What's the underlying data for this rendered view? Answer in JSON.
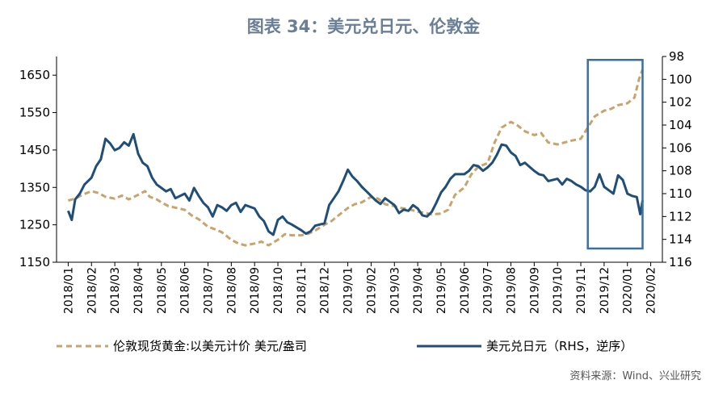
{
  "chart_data": {
    "type": "line",
    "title": "图表 34：美元兑日元、伦敦金",
    "source": "资料来源：Wind、兴业研究",
    "x_categories": [
      "2018/01",
      "2018/02",
      "2018/03",
      "2018/04",
      "2018/05",
      "2018/06",
      "2018/07",
      "2018/08",
      "2018/09",
      "2018/10",
      "2018/11",
      "2018/12",
      "2019/01",
      "2019/02",
      "2019/03",
      "2019/04",
      "2019/05",
      "2019/06",
      "2019/07",
      "2019/08",
      "2019/09",
      "2019/10",
      "2019/11",
      "2019/12",
      "2020/01",
      "2020/02"
    ],
    "y_left": {
      "min": 1150,
      "max": 1700,
      "ticks": [
        1150,
        1250,
        1350,
        1450,
        1550,
        1650
      ]
    },
    "y_right": {
      "min": 98,
      "max": 116,
      "inverted": true,
      "ticks": [
        98,
        100,
        102,
        104,
        106,
        108,
        110,
        112,
        114,
        116
      ]
    },
    "highlight_box": {
      "x_from": 22.3,
      "x_to": 24.65,
      "right_from": 98.3,
      "right_to": 114.8
    },
    "series": [
      {
        "name": "伦敦现货黄金:以美元计价 美元/盎司",
        "axis": "left",
        "color": "#c8a46a",
        "style": "dashed",
        "points": [
          [
            0,
            1315
          ],
          [
            0.3,
            1320
          ],
          [
            0.6,
            1330
          ],
          [
            1.0,
            1340
          ],
          [
            1.3,
            1335
          ],
          [
            1.6,
            1325
          ],
          [
            2.0,
            1320
          ],
          [
            2.3,
            1328
          ],
          [
            2.6,
            1318
          ],
          [
            3.0,
            1330
          ],
          [
            3.3,
            1340
          ],
          [
            3.5,
            1325
          ],
          [
            3.8,
            1318
          ],
          [
            4.0,
            1310
          ],
          [
            4.3,
            1300
          ],
          [
            4.6,
            1296
          ],
          [
            5.0,
            1290
          ],
          [
            5.3,
            1275
          ],
          [
            5.6,
            1265
          ],
          [
            6.0,
            1245
          ],
          [
            6.3,
            1238
          ],
          [
            6.6,
            1230
          ],
          [
            7.0,
            1210
          ],
          [
            7.3,
            1200
          ],
          [
            7.6,
            1195
          ],
          [
            8.0,
            1200
          ],
          [
            8.3,
            1205
          ],
          [
            8.6,
            1195
          ],
          [
            9.0,
            1210
          ],
          [
            9.3,
            1225
          ],
          [
            9.6,
            1222
          ],
          [
            10.0,
            1222
          ],
          [
            10.3,
            1226
          ],
          [
            10.6,
            1235
          ],
          [
            11.0,
            1250
          ],
          [
            11.3,
            1260
          ],
          [
            11.6,
            1275
          ],
          [
            12.0,
            1295
          ],
          [
            12.3,
            1305
          ],
          [
            12.6,
            1310
          ],
          [
            13.0,
            1325
          ],
          [
            13.3,
            1320
          ],
          [
            13.6,
            1305
          ],
          [
            14.0,
            1300
          ],
          [
            14.3,
            1295
          ],
          [
            14.6,
            1292
          ],
          [
            15.0,
            1285
          ],
          [
            15.3,
            1282
          ],
          [
            15.6,
            1278
          ],
          [
            16.0,
            1280
          ],
          [
            16.3,
            1290
          ],
          [
            16.6,
            1330
          ],
          [
            17.0,
            1350
          ],
          [
            17.3,
            1385
          ],
          [
            17.6,
            1405
          ],
          [
            18.0,
            1415
          ],
          [
            18.3,
            1470
          ],
          [
            18.6,
            1510
          ],
          [
            19.0,
            1525
          ],
          [
            19.3,
            1515
          ],
          [
            19.6,
            1500
          ],
          [
            20.0,
            1490
          ],
          [
            20.3,
            1495
          ],
          [
            20.6,
            1470
          ],
          [
            21.0,
            1465
          ],
          [
            21.3,
            1470
          ],
          [
            21.6,
            1475
          ],
          [
            22.0,
            1480
          ],
          [
            22.3,
            1510
          ],
          [
            22.6,
            1540
          ],
          [
            23.0,
            1555
          ],
          [
            23.3,
            1560
          ],
          [
            23.6,
            1570
          ],
          [
            24.0,
            1575
          ],
          [
            24.3,
            1590
          ],
          [
            24.5,
            1640
          ],
          [
            24.65,
            1665
          ]
        ]
      },
      {
        "name": "美元兑日元（RHS，逆序）",
        "axis": "right",
        "color": "#1f4e79",
        "style": "solid",
        "points": [
          [
            0,
            111.5
          ],
          [
            0.15,
            112.3
          ],
          [
            0.3,
            110.5
          ],
          [
            0.5,
            110.0
          ],
          [
            0.7,
            109.2
          ],
          [
            1.0,
            108.6
          ],
          [
            1.2,
            107.6
          ],
          [
            1.4,
            107.0
          ],
          [
            1.6,
            105.2
          ],
          [
            1.8,
            105.6
          ],
          [
            2.0,
            106.2
          ],
          [
            2.2,
            106.0
          ],
          [
            2.4,
            105.5
          ],
          [
            2.6,
            105.8
          ],
          [
            2.8,
            104.8
          ],
          [
            3.0,
            106.5
          ],
          [
            3.2,
            107.3
          ],
          [
            3.4,
            107.6
          ],
          [
            3.6,
            108.6
          ],
          [
            3.8,
            109.2
          ],
          [
            4.0,
            109.5
          ],
          [
            4.2,
            109.8
          ],
          [
            4.4,
            109.6
          ],
          [
            4.6,
            110.4
          ],
          [
            5.0,
            110.0
          ],
          [
            5.2,
            110.6
          ],
          [
            5.4,
            109.5
          ],
          [
            5.6,
            110.2
          ],
          [
            5.8,
            110.8
          ],
          [
            6.0,
            111.2
          ],
          [
            6.2,
            112.0
          ],
          [
            6.4,
            111.0
          ],
          [
            6.6,
            111.2
          ],
          [
            6.8,
            111.5
          ],
          [
            7.0,
            111.0
          ],
          [
            7.2,
            110.8
          ],
          [
            7.4,
            111.6
          ],
          [
            7.6,
            111.0
          ],
          [
            8.0,
            111.3
          ],
          [
            8.2,
            112.0
          ],
          [
            8.4,
            112.4
          ],
          [
            8.6,
            113.3
          ],
          [
            8.8,
            113.6
          ],
          [
            9.0,
            112.3
          ],
          [
            9.2,
            112.0
          ],
          [
            9.4,
            112.5
          ],
          [
            9.6,
            112.7
          ],
          [
            10.0,
            113.2
          ],
          [
            10.2,
            113.5
          ],
          [
            10.4,
            113.3
          ],
          [
            10.6,
            112.8
          ],
          [
            11.0,
            112.6
          ],
          [
            11.2,
            111.0
          ],
          [
            11.4,
            110.4
          ],
          [
            11.6,
            109.8
          ],
          [
            11.8,
            108.9
          ],
          [
            12.0,
            107.9
          ],
          [
            12.2,
            108.5
          ],
          [
            12.4,
            108.9
          ],
          [
            12.6,
            109.4
          ],
          [
            12.8,
            109.8
          ],
          [
            13.0,
            110.2
          ],
          [
            13.2,
            110.6
          ],
          [
            13.4,
            110.9
          ],
          [
            13.6,
            110.4
          ],
          [
            14.0,
            111.0
          ],
          [
            14.2,
            111.7
          ],
          [
            14.4,
            111.4
          ],
          [
            14.6,
            111.5
          ],
          [
            14.8,
            111.0
          ],
          [
            15.0,
            111.3
          ],
          [
            15.2,
            111.9
          ],
          [
            15.4,
            112.0
          ],
          [
            15.6,
            111.6
          ],
          [
            15.8,
            110.8
          ],
          [
            16.0,
            109.9
          ],
          [
            16.2,
            109.4
          ],
          [
            16.4,
            108.7
          ],
          [
            16.6,
            108.3
          ],
          [
            17.0,
            108.3
          ],
          [
            17.2,
            108.0
          ],
          [
            17.4,
            107.5
          ],
          [
            17.6,
            107.6
          ],
          [
            17.8,
            108.0
          ],
          [
            18.0,
            107.7
          ],
          [
            18.2,
            107.3
          ],
          [
            18.4,
            106.6
          ],
          [
            18.6,
            105.7
          ],
          [
            18.8,
            105.8
          ],
          [
            19.0,
            106.4
          ],
          [
            19.2,
            106.7
          ],
          [
            19.4,
            107.5
          ],
          [
            19.6,
            107.3
          ],
          [
            20.0,
            108.0
          ],
          [
            20.2,
            108.3
          ],
          [
            20.4,
            108.4
          ],
          [
            20.6,
            108.9
          ],
          [
            21.0,
            108.7
          ],
          [
            21.2,
            109.2
          ],
          [
            21.4,
            108.7
          ],
          [
            21.6,
            108.9
          ],
          [
            21.8,
            109.2
          ],
          [
            22.0,
            109.4
          ],
          [
            22.2,
            109.7
          ],
          [
            22.4,
            109.8
          ],
          [
            22.6,
            109.4
          ],
          [
            22.8,
            108.3
          ],
          [
            23.0,
            109.4
          ],
          [
            23.2,
            109.7
          ],
          [
            23.4,
            110.0
          ],
          [
            23.6,
            108.4
          ],
          [
            23.8,
            108.8
          ],
          [
            24.0,
            110.0
          ],
          [
            24.2,
            110.2
          ],
          [
            24.4,
            110.3
          ],
          [
            24.55,
            111.8
          ],
          [
            24.65,
            110.6
          ]
        ]
      }
    ]
  }
}
